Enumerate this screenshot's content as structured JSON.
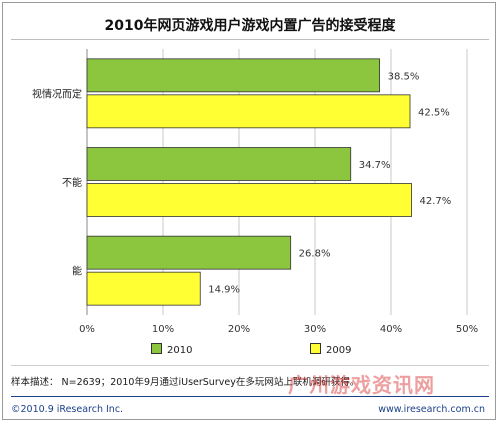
{
  "title": "2010年网页游戏用户游戏内置广告的接受程度",
  "legend": {
    "s1": "2010",
    "s2": "2009"
  },
  "colors": {
    "s1": "#8cc63e",
    "s2": "#ffff33",
    "accent": "#1a3f8a"
  },
  "note": "样本描述： N=2639；2010年9月通过iUserSurvey在多玩网站上联机调研获得。",
  "copyright": "©2010.9 iResearch Inc.",
  "site": "www.iresearch.com.cn",
  "watermark": "广州游戏资讯网",
  "chart_data": {
    "type": "bar",
    "orientation": "horizontal",
    "title": "2010年网页游戏用户游戏内置广告的接受程度",
    "categories": [
      "视情况而定",
      "不能",
      "能"
    ],
    "series": [
      {
        "name": "2010",
        "values": [
          38.5,
          34.7,
          26.8
        ],
        "labels": [
          "38.5%",
          "34.7%",
          "26.8%"
        ]
      },
      {
        "name": "2009",
        "values": [
          42.5,
          42.7,
          14.9
        ],
        "labels": [
          "42.5%",
          "42.7%",
          "14.9%"
        ]
      }
    ],
    "xlim": [
      0,
      50
    ],
    "xticks": [
      "0%",
      "10%",
      "20%",
      "30%",
      "40%",
      "50%"
    ],
    "grid": true,
    "legend_position": "bottom"
  }
}
